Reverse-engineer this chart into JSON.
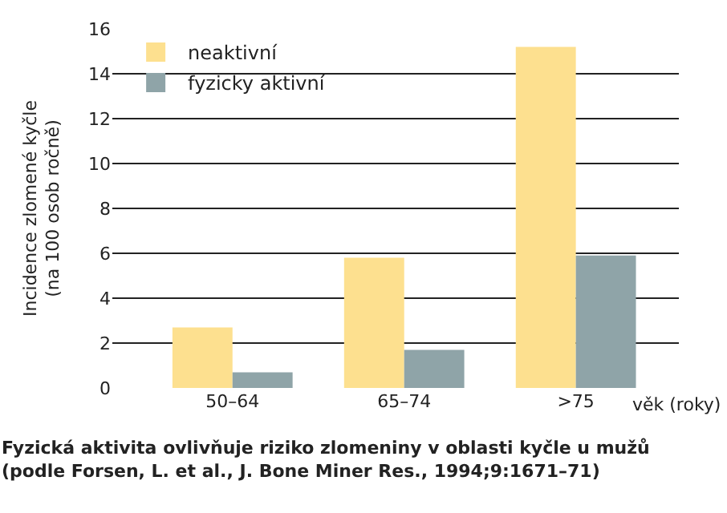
{
  "chart_data": {
    "type": "bar",
    "ylabel": "Incidence zlomené kyčle\n(na 100 osob ročně)",
    "xlabel": "věk (roky)",
    "categories": [
      "50–64",
      "65–74",
      ">75"
    ],
    "series": [
      {
        "name": "neaktivní",
        "color": "#fde08f",
        "values": [
          2.7,
          5.8,
          15.2
        ]
      },
      {
        "name": "fyzicky aktivní",
        "color": "#8fa4a8",
        "values": [
          0.7,
          1.7,
          5.9
        ]
      }
    ],
    "ylim": [
      0,
      16
    ],
    "yticks": [
      0,
      2,
      4,
      6,
      8,
      10,
      12,
      14,
      16
    ],
    "grid": "y",
    "legend": "top left",
    "annotations": [
      "Fyzická aktivita ovlivňuje riziko zlomeniny v oblasti kyčle u mužů\n(podle Forsen, L. et al., J. Bone Miner Res., 1994;9:1671–71)"
    ]
  }
}
